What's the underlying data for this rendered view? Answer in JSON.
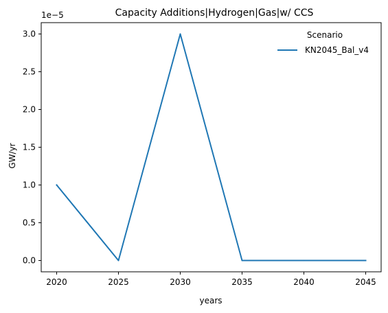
{
  "chart_data": {
    "type": "line",
    "title": "Capacity Additions|Hydrogen|Gas|w/ CCS",
    "xlabel": "years",
    "ylabel": "GW/yr",
    "y_offset_label": "1e−5",
    "x": [
      2020,
      2025,
      2030,
      2035,
      2040,
      2045
    ],
    "x_ticks": [
      "2020",
      "2025",
      "2030",
      "2035",
      "2040",
      "2045"
    ],
    "y_ticks": [
      "0.0",
      "0.5",
      "1.0",
      "1.5",
      "2.0",
      "2.5",
      "3.0"
    ],
    "y_tick_values": [
      0,
      0.5,
      1.0,
      1.5,
      2.0,
      2.5,
      3.0
    ],
    "y_multiplier": 1e-05,
    "series": [
      {
        "name": "KN2045_Bal_v4",
        "values": [
          1.0,
          0.0,
          3.0,
          0.0,
          0.0,
          0.0
        ],
        "color": "#1f77b4"
      }
    ],
    "xlim": [
      2018.75,
      2046.25
    ],
    "ylim": [
      -0.15,
      3.15
    ],
    "legend": {
      "title": "Scenario",
      "placement": "top-right"
    },
    "grid": false
  }
}
